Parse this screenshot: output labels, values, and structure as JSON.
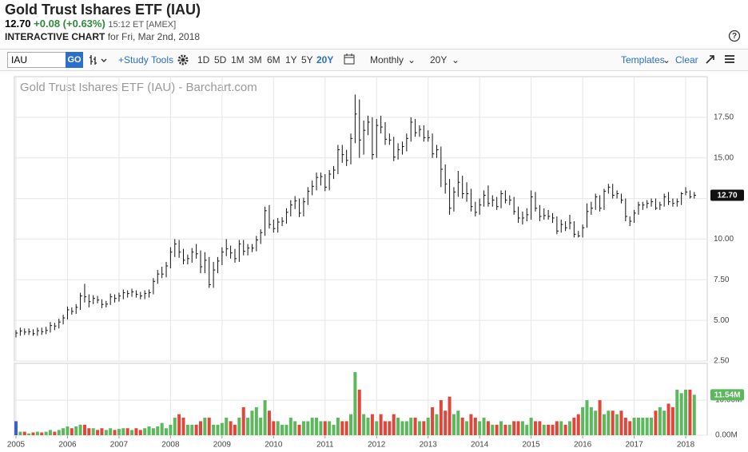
{
  "header": {
    "title": "Gold Trust Ishares ETF (IAU)",
    "price": "12.70",
    "change": "+0.08 (+0.63%)",
    "time": "15:12 ET [AMEX]",
    "chart_label": "INTERACTIVE CHART",
    "date": "for Fri, Mar 2nd, 2018"
  },
  "toolbar": {
    "symbol": "IAU",
    "go": "GO",
    "study": "+Study",
    "tools": "Tools",
    "periods": [
      "1D",
      "5D",
      "1M",
      "3M",
      "6M",
      "1Y",
      "5Y",
      "20Y"
    ],
    "interval": "Monthly",
    "range": "20Y",
    "templates": "Templates",
    "clear": "Clear"
  },
  "chart_data": [
    {
      "type": "ohlc",
      "title": "Gold Trust Ishares ETF (IAU) - Barchart.com",
      "color": "#111111",
      "grid": true,
      "categories": [
        "2005",
        null,
        null,
        null,
        null,
        null,
        null,
        null,
        null,
        null,
        null,
        null,
        "2006",
        null,
        null,
        null,
        null,
        null,
        null,
        null,
        null,
        null,
        null,
        null,
        "2007",
        null,
        null,
        null,
        null,
        null,
        null,
        null,
        null,
        null,
        null,
        null,
        "2008",
        null,
        null,
        null,
        null,
        null,
        null,
        null,
        null,
        null,
        null,
        null,
        "2009",
        null,
        null,
        null,
        null,
        null,
        null,
        null,
        null,
        null,
        null,
        null,
        "2010",
        null,
        null,
        null,
        null,
        null,
        null,
        null,
        null,
        null,
        null,
        null,
        "2011",
        null,
        null,
        null,
        null,
        null,
        null,
        null,
        null,
        null,
        null,
        null,
        "2012",
        null,
        null,
        null,
        null,
        null,
        null,
        null,
        null,
        null,
        null,
        null,
        "2013",
        null,
        null,
        null,
        null,
        null,
        null,
        null,
        null,
        null,
        null,
        null,
        "2014",
        null,
        null,
        null,
        null,
        null,
        null,
        null,
        null,
        null,
        null,
        null,
        "2015",
        null,
        null,
        null,
        null,
        null,
        null,
        null,
        null,
        null,
        null,
        null,
        "2016",
        null,
        null,
        null,
        null,
        null,
        null,
        null,
        null,
        null,
        null,
        null,
        "2017",
        null,
        null,
        null,
        null,
        null,
        null,
        null,
        null,
        null,
        null,
        null,
        "2018",
        null,
        null
      ],
      "close": [
        4.22,
        4.35,
        4.28,
        4.3,
        4.18,
        4.36,
        4.3,
        4.38,
        4.68,
        4.65,
        4.9,
        5.15,
        5.65,
        5.55,
        5.8,
        6.5,
        6.45,
        6.15,
        6.35,
        6.25,
        5.98,
        6.0,
        6.45,
        6.35,
        6.5,
        6.7,
        6.65,
        6.75,
        6.6,
        6.5,
        6.65,
        6.7,
        7.4,
        7.85,
        7.85,
        8.35,
        9.2,
        9.7,
        9.2,
        8.7,
        8.8,
        9.2,
        9.1,
        8.3,
        8.7,
        7.2,
        8.1,
        8.65,
        9.2,
        9.4,
        9.15,
        8.8,
        9.7,
        9.25,
        9.45,
        9.45,
        9.95,
        10.4,
        11.75,
        10.9,
        10.65,
        11.05,
        11.1,
        11.65,
        12.1,
        12.35,
        11.6,
        12.3,
        12.95,
        13.25,
        13.8,
        13.85,
        13.2,
        14.0,
        14.25,
        15.5,
        15.2,
        14.85,
        16.2,
        17.7,
        16.1,
        16.7,
        17.2,
        15.2,
        17.0,
        16.9,
        16.15,
        16.1,
        15.05,
        15.5,
        15.7,
        16.2,
        17.2,
        16.55,
        16.75,
        16.25,
        16.25,
        15.25,
        15.5,
        14.3,
        13.4,
        11.9,
        12.9,
        13.5,
        12.8,
        12.8,
        12.0,
        11.65,
        12.1,
        12.7,
        12.2,
        12.4,
        12.0,
        12.8,
        12.4,
        12.4,
        11.7,
        11.3,
        11.3,
        11.5,
        12.6,
        11.9,
        11.4,
        11.45,
        11.4,
        11.3,
        10.5,
        10.9,
        10.7,
        11.0,
        10.3,
        10.2,
        10.7,
        11.7,
        11.9,
        12.6,
        11.9,
        12.95,
        13.2,
        12.7,
        12.8,
        12.4,
        11.4,
        11.1,
        11.6,
        12.1,
        12.1,
        12.2,
        12.3,
        11.9,
        12.1,
        12.6,
        12.3,
        12.2,
        12.3,
        12.8,
        12.9,
        12.6,
        12.7
      ],
      "high": [
        4.4,
        4.55,
        4.5,
        4.5,
        4.45,
        4.55,
        4.55,
        4.6,
        4.9,
        4.85,
        5.1,
        5.35,
        5.85,
        5.8,
        6.0,
        6.7,
        7.25,
        6.6,
        6.55,
        6.5,
        6.3,
        6.2,
        6.65,
        6.6,
        6.7,
        6.9,
        6.85,
        6.95,
        6.85,
        6.75,
        6.85,
        6.9,
        7.6,
        8.1,
        8.3,
        8.6,
        9.5,
        10.0,
        9.95,
        9.4,
        9.05,
        9.45,
        9.7,
        9.3,
        9.2,
        8.9,
        8.6,
        8.9,
        9.5,
        10.0,
        9.6,
        9.4,
        9.95,
        9.95,
        9.7,
        9.7,
        10.2,
        10.6,
        12.0,
        12.1,
        11.2,
        11.3,
        11.35,
        11.9,
        12.4,
        12.65,
        12.5,
        12.55,
        13.2,
        13.6,
        14.1,
        14.1,
        14.0,
        14.25,
        14.5,
        15.8,
        15.8,
        15.5,
        16.5,
        18.9,
        18.6,
        17.3,
        17.6,
        17.5,
        17.4,
        17.6,
        17.2,
        16.5,
        16.3,
        15.9,
        16.0,
        16.5,
        17.5,
        17.4,
        17.0,
        17.0,
        16.7,
        16.5,
        15.8,
        15.7,
        14.6,
        13.7,
        13.2,
        14.2,
        13.9,
        13.5,
        13.1,
        12.3,
        12.5,
        13.0,
        13.3,
        12.7,
        12.6,
        13.0,
        13.0,
        12.7,
        12.6,
        12.0,
        11.7,
        11.9,
        13.0,
        12.9,
        12.1,
        11.9,
        11.8,
        11.6,
        11.4,
        11.2,
        11.1,
        11.5,
        11.1,
        10.5,
        10.9,
        12.2,
        12.3,
        12.8,
        12.7,
        13.1,
        13.4,
        13.4,
        13.0,
        12.8,
        12.5,
        11.4,
        11.8,
        12.3,
        12.3,
        12.4,
        12.5,
        12.5,
        12.3,
        12.8,
        12.9,
        12.5,
        12.5,
        12.9,
        13.2,
        13.0,
        12.9
      ],
      "low": [
        3.95,
        4.05,
        4.1,
        4.1,
        4.05,
        4.05,
        4.1,
        4.15,
        4.25,
        4.4,
        4.5,
        4.75,
        5.05,
        5.35,
        5.4,
        5.65,
        6.1,
        5.8,
        6.0,
        6.05,
        5.75,
        5.8,
        5.95,
        6.1,
        6.15,
        6.3,
        6.4,
        6.45,
        6.4,
        6.3,
        6.3,
        6.4,
        6.6,
        7.25,
        7.6,
        7.65,
        8.2,
        8.9,
        8.85,
        8.45,
        8.45,
        8.55,
        8.8,
        7.9,
        7.9,
        7.0,
        7.0,
        7.9,
        8.4,
        8.95,
        8.8,
        8.55,
        8.6,
        9.0,
        9.0,
        9.2,
        9.25,
        9.7,
        10.2,
        10.65,
        10.4,
        10.4,
        10.8,
        10.95,
        11.4,
        11.85,
        11.35,
        11.4,
        12.1,
        12.7,
        13.0,
        13.3,
        12.95,
        13.0,
        13.7,
        14.0,
        14.7,
        14.5,
        14.6,
        15.9,
        15.0,
        15.2,
        16.4,
        14.9,
        15.0,
        16.5,
        15.8,
        15.8,
        14.8,
        14.9,
        15.2,
        15.4,
        16.0,
        16.3,
        16.3,
        16.0,
        16.0,
        15.0,
        15.0,
        13.2,
        12.8,
        11.5,
        11.7,
        12.6,
        12.5,
        12.3,
        11.7,
        11.4,
        11.5,
        12.0,
        12.0,
        12.0,
        11.8,
        11.9,
        12.2,
        12.1,
        11.5,
        11.0,
        10.9,
        11.1,
        11.2,
        11.7,
        11.1,
        11.2,
        11.2,
        11.0,
        10.3,
        10.4,
        10.5,
        10.6,
        10.1,
        10.1,
        10.1,
        10.7,
        11.5,
        11.8,
        11.7,
        11.8,
        12.8,
        12.5,
        12.5,
        12.2,
        11.1,
        10.8,
        11.0,
        11.5,
        11.8,
        11.9,
        12.0,
        11.8,
        11.8,
        12.0,
        12.1,
        12.0,
        12.0,
        12.1,
        12.7,
        12.5,
        12.5
      ],
      "ylim": [
        2.5,
        20
      ],
      "yticks": [
        {
          "value": 2.5,
          "label": "2.50"
        },
        {
          "value": 5,
          "label": "5.00"
        },
        {
          "value": 7.5,
          "label": "7.50"
        },
        {
          "value": 10,
          "label": "10.00"
        },
        {
          "value": 12.5,
          "label": "12.50"
        },
        {
          "value": 15,
          "label": "15.00"
        },
        {
          "value": 17.5,
          "label": "17.50"
        }
      ],
      "current_value": {
        "value": 12.7,
        "label": "12.70"
      }
    },
    {
      "type": "volume",
      "up_color": "#5cb85c",
      "down_color": "#e0463a",
      "first_color": "#3f5fc8",
      "values": [
        4,
        1,
        1,
        0.5,
        0.8,
        1,
        0.8,
        1,
        1.5,
        1,
        1.5,
        2,
        2.5,
        2,
        2.5,
        3,
        3,
        2,
        2,
        1.5,
        2,
        1.5,
        2,
        1.5,
        1.8,
        2,
        2,
        1.5,
        2,
        1.5,
        2,
        2.5,
        2,
        2.5,
        3.5,
        2,
        3,
        5,
        6,
        5,
        3,
        3,
        3,
        4,
        5,
        5,
        3,
        3,
        3.5,
        5,
        4,
        3,
        5,
        8,
        5,
        7,
        8,
        5,
        10,
        7,
        4,
        4,
        3,
        3,
        5,
        4,
        3,
        4,
        4,
        5,
        5,
        4,
        4,
        4,
        3,
        5,
        4,
        4,
        6,
        18,
        13,
        6,
        5,
        6,
        4,
        6,
        4,
        4,
        6,
        5,
        4,
        4,
        5,
        5,
        4,
        4,
        5,
        8,
        6,
        10,
        7,
        11,
        6,
        7,
        5,
        4,
        6,
        5,
        4,
        5,
        4,
        3,
        3,
        4,
        3,
        3,
        4,
        4,
        4,
        3,
        5,
        4,
        4,
        3,
        3,
        3,
        4,
        4,
        3,
        4,
        5,
        6,
        8,
        10,
        8,
        7,
        10,
        6,
        7,
        7,
        6,
        7,
        5,
        4,
        5,
        5,
        5,
        5,
        5,
        7,
        8,
        7,
        9,
        8,
        13,
        12,
        13,
        13,
        11.54
      ],
      "ylim": [
        0,
        20.5
      ],
      "yticks": [
        {
          "value": 0,
          "label": "0.00M"
        },
        {
          "value": 10,
          "label": "10.00M"
        }
      ],
      "current_value": {
        "value": 11.54,
        "label": "11.54M"
      }
    }
  ]
}
